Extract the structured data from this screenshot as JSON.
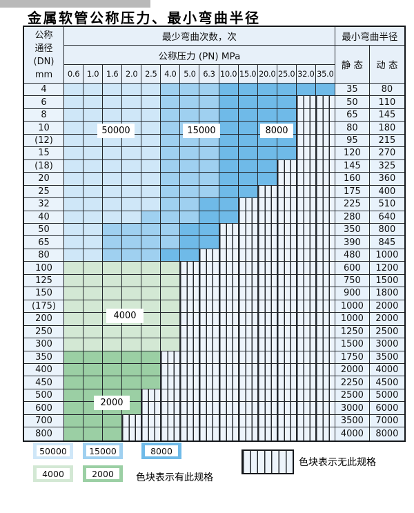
{
  "title": "金属软管公称压力、最小弯曲半径",
  "table": {
    "corner_header": [
      "公称",
      "通径",
      "(DN)",
      "mm"
    ],
    "cycles_header": "最少弯曲次数，次",
    "pressure_header": "公称压力 (PN) MPa",
    "pressure_columns": [
      "0.6",
      "1.0",
      "1.6",
      "2.0",
      "2.5",
      "4.0",
      "5.0",
      "6.3",
      "10.0",
      "15.0",
      "20.0",
      "25.0",
      "32.0",
      "35.0"
    ],
    "radius_header": "最小弯曲半径",
    "static_header": "静 态",
    "dynamic_header": "动 态",
    "rows": [
      {
        "dn": "4",
        "radius_static": "35",
        "radius_dynamic": "80",
        "cycles": [
          50000,
          50000,
          50000,
          50000,
          50000,
          15000,
          15000,
          15000,
          8000,
          8000,
          8000,
          8000,
          8000,
          8000
        ]
      },
      {
        "dn": "6",
        "radius_static": "50",
        "radius_dynamic": "110",
        "cycles": [
          50000,
          50000,
          50000,
          50000,
          50000,
          15000,
          15000,
          15000,
          8000,
          8000,
          8000,
          8000,
          null,
          null
        ]
      },
      {
        "dn": "8",
        "radius_static": "65",
        "radius_dynamic": "145",
        "cycles": [
          50000,
          50000,
          50000,
          50000,
          50000,
          15000,
          15000,
          15000,
          8000,
          8000,
          8000,
          8000,
          null,
          null
        ]
      },
      {
        "dn": "10",
        "radius_static": "80",
        "radius_dynamic": "180",
        "cycles": [
          50000,
          50000,
          50000,
          50000,
          50000,
          15000,
          15000,
          15000,
          8000,
          8000,
          8000,
          8000,
          null,
          null
        ]
      },
      {
        "dn": "(12)",
        "radius_static": "95",
        "radius_dynamic": "215",
        "cycles": [
          50000,
          50000,
          50000,
          50000,
          50000,
          15000,
          15000,
          15000,
          8000,
          8000,
          8000,
          8000,
          null,
          null
        ]
      },
      {
        "dn": "15",
        "radius_static": "120",
        "radius_dynamic": "270",
        "cycles": [
          50000,
          50000,
          50000,
          50000,
          50000,
          15000,
          15000,
          15000,
          8000,
          8000,
          8000,
          8000,
          null,
          null
        ]
      },
      {
        "dn": "(18)",
        "radius_static": "145",
        "radius_dynamic": "325",
        "cycles": [
          50000,
          50000,
          50000,
          50000,
          50000,
          15000,
          15000,
          15000,
          8000,
          8000,
          8000,
          null,
          null,
          null
        ]
      },
      {
        "dn": "20",
        "radius_static": "160",
        "radius_dynamic": "360",
        "cycles": [
          50000,
          50000,
          50000,
          50000,
          50000,
          15000,
          15000,
          15000,
          8000,
          8000,
          8000,
          null,
          null,
          null
        ]
      },
      {
        "dn": "25",
        "radius_static": "175",
        "radius_dynamic": "400",
        "cycles": [
          50000,
          50000,
          50000,
          50000,
          50000,
          15000,
          15000,
          15000,
          8000,
          8000,
          null,
          null,
          null,
          null
        ]
      },
      {
        "dn": "32",
        "radius_static": "225",
        "radius_dynamic": "510",
        "cycles": [
          50000,
          50000,
          50000,
          50000,
          50000,
          15000,
          15000,
          8000,
          8000,
          null,
          null,
          null,
          null,
          null
        ]
      },
      {
        "dn": "40",
        "radius_static": "280",
        "radius_dynamic": "640",
        "cycles": [
          50000,
          50000,
          50000,
          50000,
          15000,
          15000,
          15000,
          8000,
          8000,
          null,
          null,
          null,
          null,
          null
        ]
      },
      {
        "dn": "50",
        "radius_static": "350",
        "radius_dynamic": "800",
        "cycles": [
          50000,
          50000,
          15000,
          15000,
          15000,
          15000,
          8000,
          8000,
          null,
          null,
          null,
          null,
          null,
          null
        ]
      },
      {
        "dn": "65",
        "radius_static": "390",
        "radius_dynamic": "845",
        "cycles": [
          50000,
          50000,
          15000,
          15000,
          15000,
          15000,
          8000,
          8000,
          null,
          null,
          null,
          null,
          null,
          null
        ]
      },
      {
        "dn": "80",
        "radius_static": "480",
        "radius_dynamic": "1000",
        "cycles": [
          50000,
          50000,
          15000,
          15000,
          15000,
          8000,
          8000,
          null,
          null,
          null,
          null,
          null,
          null,
          null
        ]
      },
      {
        "dn": "100",
        "radius_static": "600",
        "radius_dynamic": "1200",
        "cycles": [
          4000,
          4000,
          4000,
          4000,
          4000,
          4000,
          null,
          null,
          null,
          null,
          null,
          null,
          null,
          null
        ]
      },
      {
        "dn": "125",
        "radius_static": "750",
        "radius_dynamic": "1500",
        "cycles": [
          4000,
          4000,
          4000,
          4000,
          4000,
          4000,
          null,
          null,
          null,
          null,
          null,
          null,
          null,
          null
        ]
      },
      {
        "dn": "150",
        "radius_static": "900",
        "radius_dynamic": "1800",
        "cycles": [
          4000,
          4000,
          4000,
          4000,
          4000,
          4000,
          null,
          null,
          null,
          null,
          null,
          null,
          null,
          null
        ]
      },
      {
        "dn": "(175)",
        "radius_static": "1000",
        "radius_dynamic": "2000",
        "cycles": [
          4000,
          4000,
          4000,
          4000,
          4000,
          4000,
          null,
          null,
          null,
          null,
          null,
          null,
          null,
          null
        ]
      },
      {
        "dn": "200",
        "radius_static": "1000",
        "radius_dynamic": "2000",
        "cycles": [
          4000,
          4000,
          4000,
          4000,
          4000,
          4000,
          null,
          null,
          null,
          null,
          null,
          null,
          null,
          null
        ]
      },
      {
        "dn": "250",
        "radius_static": "1250",
        "radius_dynamic": "2500",
        "cycles": [
          4000,
          4000,
          4000,
          4000,
          4000,
          4000,
          null,
          null,
          null,
          null,
          null,
          null,
          null,
          null
        ]
      },
      {
        "dn": "300",
        "radius_static": "1500",
        "radius_dynamic": "3000",
        "cycles": [
          4000,
          4000,
          4000,
          4000,
          4000,
          4000,
          null,
          null,
          null,
          null,
          null,
          null,
          null,
          null
        ]
      },
      {
        "dn": "350",
        "radius_static": "1750",
        "radius_dynamic": "3500",
        "cycles": [
          2000,
          2000,
          2000,
          2000,
          2000,
          null,
          null,
          null,
          null,
          null,
          null,
          null,
          null,
          null
        ]
      },
      {
        "dn": "400",
        "radius_static": "2000",
        "radius_dynamic": "4000",
        "cycles": [
          2000,
          2000,
          2000,
          2000,
          2000,
          null,
          null,
          null,
          null,
          null,
          null,
          null,
          null,
          null
        ]
      },
      {
        "dn": "450",
        "radius_static": "2250",
        "radius_dynamic": "4500",
        "cycles": [
          2000,
          2000,
          2000,
          2000,
          2000,
          null,
          null,
          null,
          null,
          null,
          null,
          null,
          null,
          null
        ]
      },
      {
        "dn": "500",
        "radius_static": "2500",
        "radius_dynamic": "5000",
        "cycles": [
          2000,
          2000,
          2000,
          2000,
          null,
          null,
          null,
          null,
          null,
          null,
          null,
          null,
          null,
          null
        ]
      },
      {
        "dn": "600",
        "radius_static": "3000",
        "radius_dynamic": "6000",
        "cycles": [
          2000,
          2000,
          2000,
          2000,
          null,
          null,
          null,
          null,
          null,
          null,
          null,
          null,
          null,
          null
        ]
      },
      {
        "dn": "700",
        "radius_static": "3500",
        "radius_dynamic": "7000",
        "cycles": [
          2000,
          2000,
          2000,
          null,
          null,
          null,
          null,
          null,
          null,
          null,
          null,
          null,
          null,
          null
        ]
      },
      {
        "dn": "800",
        "radius_static": "4000",
        "radius_dynamic": "8000",
        "cycles": [
          2000,
          2000,
          2000,
          null,
          null,
          null,
          null,
          null,
          null,
          null,
          null,
          null,
          null,
          null
        ]
      }
    ]
  },
  "zone_labels": {
    "z50000": "50000",
    "z15000": "15000",
    "z8000": "8000",
    "z4000": "4000",
    "z2000": "2000"
  },
  "legend": {
    "present_note": "色块表示有此规格",
    "absent_note": "色块表示无此规格"
  },
  "colors": {
    "cycle_zones": {
      "50000": "#cfe7f8",
      "15000": "#9fd0f0",
      "8000": "#6fbae8",
      "4000": "#d3e8d4",
      "2000": "#9bcfa4"
    },
    "no_spec_bg": "#edf4fb",
    "header_bg": "#e7f0f9",
    "dn_column_bg": "#eaf3fb",
    "radius_column_bg": "#e8f2fb",
    "grid_line": "#23272c"
  }
}
